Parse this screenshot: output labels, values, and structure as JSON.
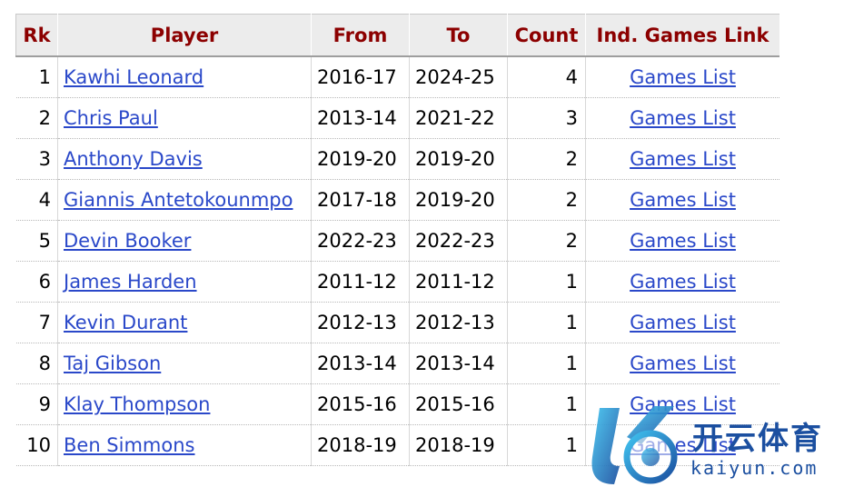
{
  "table": {
    "headers": {
      "rk": "Rk",
      "player": "Player",
      "from": "From",
      "to": "To",
      "count": "Count",
      "link": "Ind. Games Link"
    },
    "rows": [
      {
        "rk": "1",
        "player": "Kawhi Leonard",
        "from": "2016-17",
        "to": "2024-25",
        "count": "4",
        "link": "Games List"
      },
      {
        "rk": "2",
        "player": "Chris Paul",
        "from": "2013-14",
        "to": "2021-22",
        "count": "3",
        "link": "Games List"
      },
      {
        "rk": "3",
        "player": "Anthony Davis",
        "from": "2019-20",
        "to": "2019-20",
        "count": "2",
        "link": "Games List"
      },
      {
        "rk": "4",
        "player": "Giannis Antetokounmpo",
        "from": "2017-18",
        "to": "2019-20",
        "count": "2",
        "link": "Games List"
      },
      {
        "rk": "5",
        "player": "Devin Booker",
        "from": "2022-23",
        "to": "2022-23",
        "count": "2",
        "link": "Games List"
      },
      {
        "rk": "6",
        "player": "James Harden",
        "from": "2011-12",
        "to": "2011-12",
        "count": "1",
        "link": "Games List"
      },
      {
        "rk": "7",
        "player": "Kevin Durant",
        "from": "2012-13",
        "to": "2012-13",
        "count": "1",
        "link": "Games List"
      },
      {
        "rk": "8",
        "player": "Taj Gibson",
        "from": "2013-14",
        "to": "2013-14",
        "count": "1",
        "link": "Games List"
      },
      {
        "rk": "9",
        "player": "Klay Thompson",
        "from": "2015-16",
        "to": "2015-16",
        "count": "1",
        "link": "Games List"
      },
      {
        "rk": "10",
        "player": "Ben Simmons",
        "from": "2018-19",
        "to": "2018-19",
        "count": "1",
        "link": "Games List"
      }
    ]
  },
  "watermark": {
    "brand": "开云体育",
    "url": "kaiyun.com",
    "logo_icon": "kaiyun-logo-icon"
  },
  "colors": {
    "header_text": "#8c0000",
    "header_bg": "#ececec",
    "link": "#2a48c9",
    "watermark": "#1b4fa0"
  }
}
